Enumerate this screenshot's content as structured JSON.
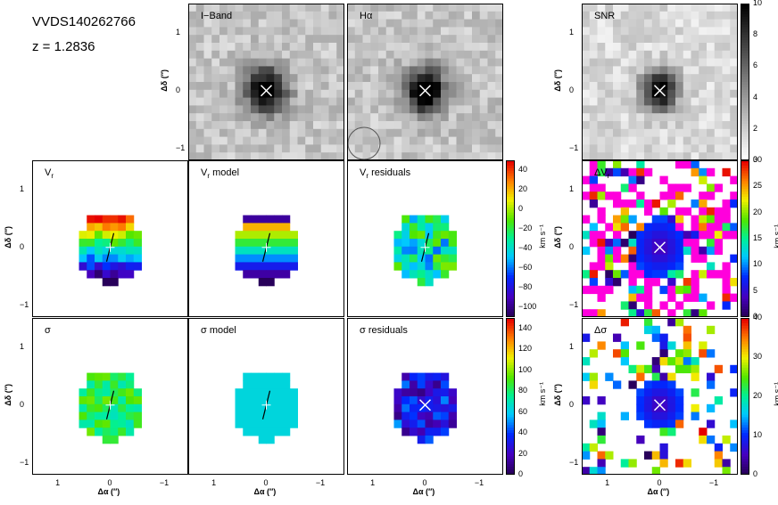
{
  "header": {
    "object_id": "VVDS140262766",
    "redshift": "z  =  1.2836"
  },
  "axes": {
    "ylabel": "Δδ (″)",
    "xlabel": "Δα (″)",
    "yticks": [
      "1",
      "0",
      "−1"
    ],
    "xticks": [
      "1",
      "0",
      "−1"
    ]
  },
  "chart_data": [
    {
      "type": "heatmap",
      "title": "I−Band",
      "xlim": [
        1.5,
        -1.5
      ],
      "ylim": [
        -1.2,
        1.5
      ],
      "colormap": "grayscale",
      "marker": "× at (0,0)"
    },
    {
      "type": "heatmap",
      "title": "Hα",
      "xlim": [
        1.5,
        -1.5
      ],
      "ylim": [
        -1.2,
        1.5
      ],
      "colormap": "grayscale",
      "marker": "× at (0,0)",
      "psf_circle": true
    },
    {
      "type": "heatmap",
      "title": "SNR",
      "xlim": [
        1.5,
        -1.5
      ],
      "ylim": [
        -1.2,
        1.5
      ],
      "colormap": "grayscale",
      "colorbar": {
        "ticks": [
          "0",
          "2",
          "4",
          "6",
          "8",
          "10"
        ],
        "range": [
          0,
          10
        ]
      }
    },
    {
      "type": "heatmap",
      "title": "V",
      "subscript": "r",
      "xlim": [
        1.5,
        -1.5
      ],
      "ylim": [
        -1.2,
        1.5
      ],
      "colormap": "rainbow"
    },
    {
      "type": "heatmap",
      "title": "V",
      "subscript": "r",
      "title_suffix": " model",
      "xlim": [
        1.5,
        -1.5
      ],
      "ylim": [
        -1.2,
        1.5
      ],
      "colormap": "rainbow"
    },
    {
      "type": "heatmap",
      "title": "V",
      "subscript": "r",
      "title_suffix": " residuals",
      "xlim": [
        1.5,
        -1.5
      ],
      "ylim": [
        -1.2,
        1.5
      ],
      "colormap": "rainbow",
      "colorbar": {
        "label": "km s⁻¹",
        "ticks": [
          "40",
          "20",
          "0",
          "−20",
          "−40",
          "−60",
          "−80",
          "−100"
        ],
        "range": [
          -110,
          50
        ]
      }
    },
    {
      "type": "heatmap",
      "title": "ΔV",
      "subscript": "r",
      "xlim": [
        1.5,
        -1.5
      ],
      "ylim": [
        -1.2,
        1.5
      ],
      "colormap": "rainbow",
      "colorbar": {
        "label": "km s⁻¹",
        "ticks": [
          "30",
          "25",
          "20",
          "15",
          "10",
          "5",
          "0"
        ],
        "range": [
          0,
          30
        ]
      }
    },
    {
      "type": "heatmap",
      "title": "σ",
      "xlim": [
        1.5,
        -1.5
      ],
      "ylim": [
        -1.2,
        1.5
      ],
      "colormap": "rainbow"
    },
    {
      "type": "heatmap",
      "title": "σ",
      "title_suffix": " model",
      "xlim": [
        1.5,
        -1.5
      ],
      "ylim": [
        -1.2,
        1.5
      ],
      "colormap": "rainbow"
    },
    {
      "type": "heatmap",
      "title": "σ",
      "title_suffix": " residuals",
      "xlim": [
        1.5,
        -1.5
      ],
      "ylim": [
        -1.2,
        1.5
      ],
      "colormap": "rainbow",
      "colorbar": {
        "label": "km s⁻¹",
        "ticks": [
          "140",
          "120",
          "100",
          "80",
          "60",
          "40",
          "20",
          "0"
        ],
        "range": [
          0,
          150
        ]
      }
    },
    {
      "type": "heatmap",
      "title": "Δσ",
      "xlim": [
        1.5,
        -1.5
      ],
      "ylim": [
        -1.2,
        1.5
      ],
      "colormap": "rainbow",
      "colorbar": {
        "label": "km s⁻¹",
        "ticks": [
          "40",
          "30",
          "20",
          "10",
          "0"
        ],
        "range": [
          0,
          40
        ]
      }
    }
  ]
}
